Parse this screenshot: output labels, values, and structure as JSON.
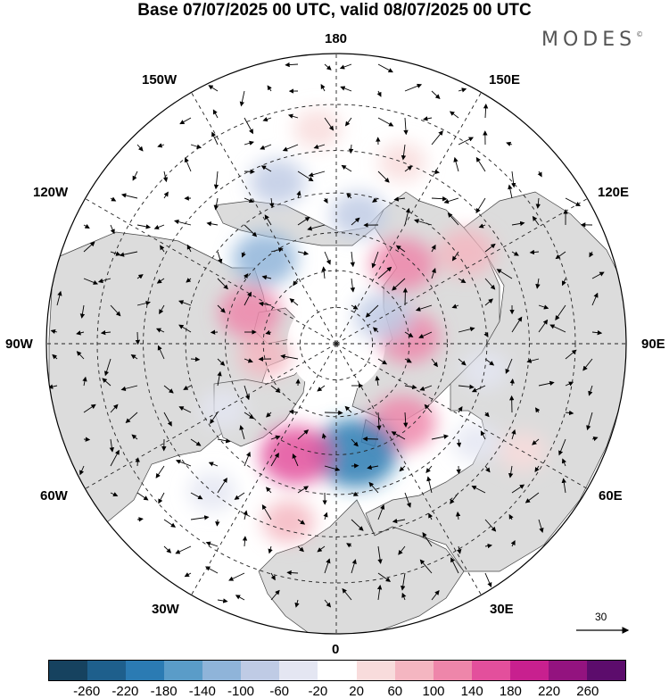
{
  "title": "Base 07/07/2025 00 UTC, valid 08/07/2025 00 UTC",
  "brand": {
    "name": "MODES",
    "mark": "©"
  },
  "longitude_labels": {
    "top": "180",
    "bottom": "0",
    "left": "90W",
    "right": "90E",
    "upper_left_1": "150W",
    "upper_left_2": "120W",
    "upper_right_1": "150E",
    "upper_right_2": "120E",
    "lower_left_1": "60W",
    "lower_left_2": "30W",
    "lower_right_1": "60E",
    "lower_right_2": "30E"
  },
  "reference_vector": "30",
  "colorbar": {
    "colors": [
      "#16425f",
      "#1e5f8c",
      "#2b7bb3",
      "#5a9cc8",
      "#8fb4d9",
      "#bfcbe5",
      "#e4e6f2",
      "#ffffff",
      "#f8dcdc",
      "#f4b6c1",
      "#ee86aa",
      "#e34f9c",
      "#c8208f",
      "#93137f",
      "#5c0c6c"
    ],
    "tick_labels": [
      "-260",
      "-220",
      "-180",
      "-140",
      "-100",
      "-60",
      "-20",
      "20",
      "60",
      "100",
      "140",
      "180",
      "220",
      "260"
    ]
  },
  "anomalies": [
    {
      "lon": 140,
      "lat": 62,
      "value": 120
    },
    {
      "lon": 95,
      "lat": 70,
      "value": 110
    },
    {
      "lon": 125,
      "lat": 48,
      "value": 90
    },
    {
      "lon": 40,
      "lat": 62,
      "value": 130
    },
    {
      "lon": 10,
      "lat": 60,
      "value": -210
    },
    {
      "lon": -20,
      "lat": 58,
      "value": 150
    },
    {
      "lon": -15,
      "lat": 42,
      "value": 60
    },
    {
      "lon": -40,
      "lat": 40,
      "value": -40
    },
    {
      "lon": -80,
      "lat": 70,
      "value": 60
    },
    {
      "lon": -110,
      "lat": 65,
      "value": 110
    },
    {
      "lon": -140,
      "lat": 60,
      "value": -120
    },
    {
      "lon": -160,
      "lat": 45,
      "value": -80
    },
    {
      "lon": 170,
      "lat": 55,
      "value": -80
    },
    {
      "lon": 120,
      "lat": 75,
      "value": -90
    },
    {
      "lon": 80,
      "lat": 50,
      "value": -40
    },
    {
      "lon": 55,
      "lat": 45,
      "value": -40
    },
    {
      "lon": 160,
      "lat": 40,
      "value": 40
    },
    {
      "lon": -175,
      "lat": 35,
      "value": 40
    },
    {
      "lon": -60,
      "lat": 55,
      "value": -40
    },
    {
      "lon": 60,
      "lat": 35,
      "value": 40
    }
  ],
  "map": {
    "projection": "north-polar-stereographic",
    "lat_min": 20,
    "grid_lat_step": 10,
    "grid_lon_step": 30
  }
}
